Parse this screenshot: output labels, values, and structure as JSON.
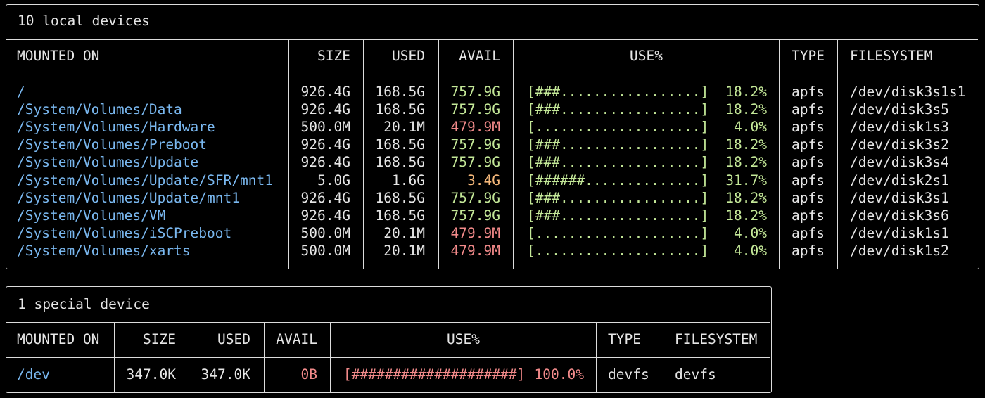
{
  "local": {
    "title": "10 local devices",
    "headers": {
      "mounted_on": "MOUNTED ON",
      "size": "SIZE",
      "used": "USED",
      "avail": "AVAIL",
      "use_pct": "USE%",
      "type": "TYPE",
      "filesystem": "FILESYSTEM"
    },
    "rows": [
      {
        "mount": "/",
        "size": "926.4G",
        "used": "168.5G",
        "avail": "757.9G",
        "bar": "[###.................]",
        "pct": "18.2%",
        "type": "apfs",
        "fs": "/dev/disk3s1s1",
        "level": "ok"
      },
      {
        "mount": "/System/Volumes/Data",
        "size": "926.4G",
        "used": "168.5G",
        "avail": "757.9G",
        "bar": "[###.................]",
        "pct": "18.2%",
        "type": "apfs",
        "fs": "/dev/disk3s5",
        "level": "ok"
      },
      {
        "mount": "/System/Volumes/Hardware",
        "size": "500.0M",
        "used": "20.1M",
        "avail": "479.9M",
        "bar": "[....................]",
        "pct": "4.0%",
        "type": "apfs",
        "fs": "/dev/disk1s3",
        "level": "low"
      },
      {
        "mount": "/System/Volumes/Preboot",
        "size": "926.4G",
        "used": "168.5G",
        "avail": "757.9G",
        "bar": "[###.................]",
        "pct": "18.2%",
        "type": "apfs",
        "fs": "/dev/disk3s2",
        "level": "ok"
      },
      {
        "mount": "/System/Volumes/Update",
        "size": "926.4G",
        "used": "168.5G",
        "avail": "757.9G",
        "bar": "[###.................]",
        "pct": "18.2%",
        "type": "apfs",
        "fs": "/dev/disk3s4",
        "level": "ok"
      },
      {
        "mount": "/System/Volumes/Update/SFR/mnt1",
        "size": "5.0G",
        "used": "1.6G",
        "avail": "3.4G",
        "bar": "[######..............]",
        "pct": "31.7%",
        "type": "apfs",
        "fs": "/dev/disk2s1",
        "level": "mid"
      },
      {
        "mount": "/System/Volumes/Update/mnt1",
        "size": "926.4G",
        "used": "168.5G",
        "avail": "757.9G",
        "bar": "[###.................]",
        "pct": "18.2%",
        "type": "apfs",
        "fs": "/dev/disk3s1",
        "level": "ok"
      },
      {
        "mount": "/System/Volumes/VM",
        "size": "926.4G",
        "used": "168.5G",
        "avail": "757.9G",
        "bar": "[###.................]",
        "pct": "18.2%",
        "type": "apfs",
        "fs": "/dev/disk3s6",
        "level": "ok"
      },
      {
        "mount": "/System/Volumes/iSCPreboot",
        "size": "500.0M",
        "used": "20.1M",
        "avail": "479.9M",
        "bar": "[....................]",
        "pct": "4.0%",
        "type": "apfs",
        "fs": "/dev/disk1s1",
        "level": "low"
      },
      {
        "mount": "/System/Volumes/xarts",
        "size": "500.0M",
        "used": "20.1M",
        "avail": "479.9M",
        "bar": "[....................]",
        "pct": "4.0%",
        "type": "apfs",
        "fs": "/dev/disk1s2",
        "level": "low"
      }
    ]
  },
  "special": {
    "title": "1 special device",
    "headers": {
      "mounted_on": "MOUNTED ON",
      "size": "SIZE",
      "used": "USED",
      "avail": "AVAIL",
      "use_pct": "USE%",
      "type": "TYPE",
      "filesystem": "FILESYSTEM"
    },
    "rows": [
      {
        "mount": "/dev",
        "size": "347.0K",
        "used": "347.0K",
        "avail": "0B",
        "bar": "[####################]",
        "pct": "100.0%",
        "type": "devfs",
        "fs": "devfs",
        "level": "full"
      }
    ]
  },
  "colors": {
    "mount": "#7ab8f0",
    "ok": "#c4e898",
    "low": "#f28a8a",
    "mid": "#f5b87a",
    "border": "#dcdcdc"
  }
}
